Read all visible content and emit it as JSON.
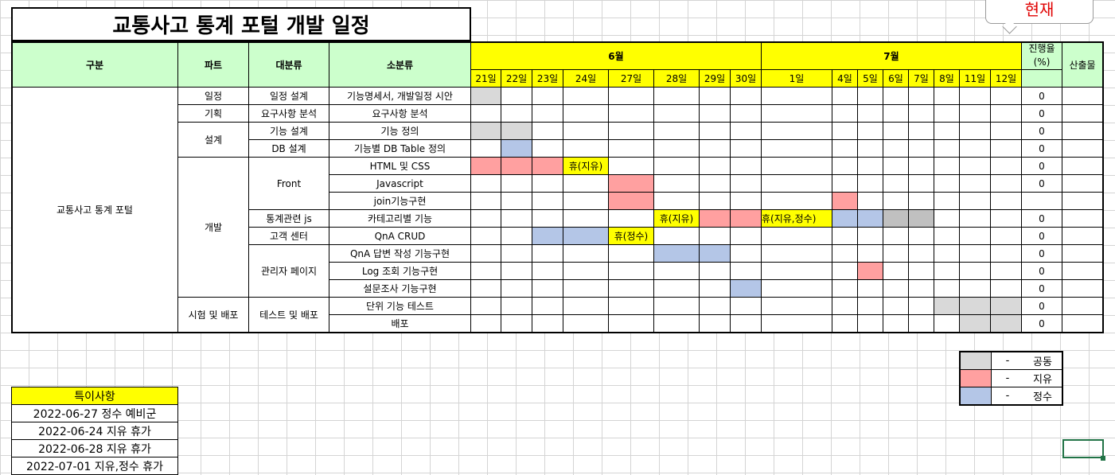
{
  "title": "교통사고 통계 포털 개발 일정",
  "callout": "현재",
  "headers": {
    "category": "구분",
    "part": "파트",
    "major": "대분류",
    "minor": "소분류",
    "june": "6월",
    "july": "7월",
    "progress": "진행율\n(%)",
    "output": "산출물"
  },
  "days": [
    "21일",
    "22일",
    "23일",
    "24일",
    "27일",
    "28일",
    "29일",
    "30일",
    "1일",
    "4일",
    "5일",
    "6일",
    "7일",
    "8일",
    "11일",
    "12일"
  ],
  "project": "교통사고 통계 포털",
  "parts": [
    {
      "label": "일정",
      "rows": 1
    },
    {
      "label": "기획",
      "rows": 1
    },
    {
      "label": "설계",
      "rows": 2
    },
    {
      "label": "개발",
      "rows": 8
    },
    {
      "label": "시험 및 배포",
      "rows": 2
    }
  ],
  "majors": [
    {
      "label": "일정 설계",
      "rows": 1
    },
    {
      "label": "요구사항 분석",
      "rows": 1
    },
    {
      "label": "기능 설계",
      "rows": 1
    },
    {
      "label": "DB 설계",
      "rows": 1
    },
    {
      "label": "Front",
      "rows": 3
    },
    {
      "label": "통계관련 js",
      "rows": 1
    },
    {
      "label": "고객 센터",
      "rows": 1
    },
    {
      "label": "관리자 페이지",
      "rows": 3
    },
    {
      "label": "테스트 및 배포",
      "rows": 2
    }
  ],
  "tasks": [
    {
      "minor": "기능명세서, 개발일정 시안",
      "progress": "0",
      "cells": [
        "g",
        "",
        "",
        "",
        "",
        "",
        "",
        "",
        "",
        "",
        "",
        "",
        "",
        "",
        "",
        ""
      ]
    },
    {
      "minor": "요구사항 분석",
      "progress": "0",
      "cells": [
        "",
        "",
        "",
        "",
        "",
        "",
        "",
        "",
        "",
        "",
        "",
        "",
        "",
        "",
        "",
        ""
      ]
    },
    {
      "minor": "기능 정의",
      "progress": "0",
      "cells": [
        "g",
        "g",
        "",
        "",
        "",
        "",
        "",
        "",
        "",
        "",
        "",
        "",
        "",
        "",
        "",
        ""
      ]
    },
    {
      "minor": "기능별 DB Table 정의",
      "progress": "0",
      "cells": [
        "",
        "b",
        "",
        "",
        "",
        "",
        "",
        "",
        "",
        "",
        "",
        "",
        "",
        "",
        "",
        ""
      ]
    },
    {
      "minor": "HTML 및 CSS",
      "progress": "0",
      "cells": [
        "p",
        "p",
        "p",
        "y:휴(지유)",
        "",
        "",
        "",
        "",
        "",
        "",
        "",
        "",
        "",
        "",
        "",
        ""
      ]
    },
    {
      "minor": "Javascript",
      "progress": "0",
      "cells": [
        "",
        "",
        "",
        "",
        "p",
        "",
        "",
        "",
        "",
        "",
        "",
        "",
        "",
        "",
        "",
        ""
      ]
    },
    {
      "minor": "join기능구현",
      "progress": "",
      "cells": [
        "",
        "",
        "",
        "",
        "p",
        "",
        "",
        "",
        "",
        "p",
        "",
        "",
        "",
        "",
        "",
        ""
      ]
    },
    {
      "minor": "카테고리별 기능",
      "progress": "0",
      "cells": [
        "",
        "",
        "",
        "",
        "",
        "y:휴(지유)",
        "p",
        "p",
        "y:휴(지유,정수)",
        "b",
        "b",
        "k",
        "k",
        "",
        "",
        ""
      ]
    },
    {
      "minor": "QnA CRUD",
      "progress": "0",
      "cells": [
        "",
        "",
        "b",
        "b",
        "y:휴(정수)",
        "",
        "",
        "",
        "",
        "",
        "",
        "",
        "",
        "",
        "",
        ""
      ]
    },
    {
      "minor": "QnA 답변 작성 기능구현",
      "progress": "0",
      "cells": [
        "",
        "",
        "",
        "",
        "",
        "b",
        "b",
        "",
        "",
        "",
        "",
        "",
        "",
        "",
        "",
        ""
      ]
    },
    {
      "minor": "Log 조회 기능구현",
      "progress": "0",
      "cells": [
        "",
        "",
        "",
        "",
        "",
        "",
        "",
        "",
        "",
        "",
        "p",
        "",
        "",
        "",
        "",
        ""
      ]
    },
    {
      "minor": "설문조사 기능구현",
      "progress": "0",
      "cells": [
        "",
        "",
        "",
        "",
        "",
        "",
        "",
        "b",
        "",
        "",
        "",
        "",
        "",
        "",
        "",
        ""
      ]
    },
    {
      "minor": "단위 기능 테스트",
      "progress": "0",
      "cells": [
        "",
        "",
        "",
        "",
        "",
        "",
        "",
        "",
        "",
        "",
        "",
        "",
        "",
        "g",
        "g",
        "g"
      ]
    },
    {
      "minor": "배포",
      "progress": "0",
      "cells": [
        "",
        "",
        "",
        "",
        "",
        "",
        "",
        "",
        "",
        "",
        "",
        "",
        "",
        "",
        "g",
        "g"
      ]
    }
  ],
  "legend": [
    {
      "color": "#d9d9d9",
      "dash": "-",
      "label": "공동"
    },
    {
      "color": "#ffa0a0",
      "dash": "-",
      "label": "지유"
    },
    {
      "color": "#b4c6e7",
      "dash": "-",
      "label": "정수"
    }
  ],
  "notes": {
    "header": "특이사항",
    "items": [
      "2022-06-27 정수 예비군",
      "2022-06-24 지유 휴가",
      "2022-06-28 지유 휴가",
      "2022-07-01 지유,정수 휴가"
    ]
  }
}
